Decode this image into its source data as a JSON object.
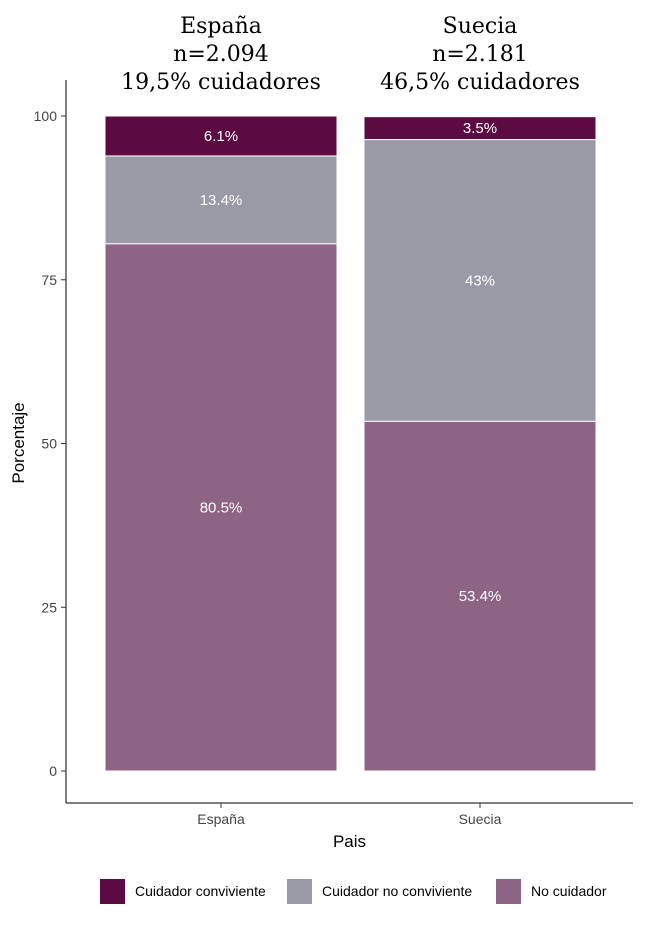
{
  "headers": [
    {
      "country": "España",
      "n": "n=2.094",
      "carers": "19,5% cuidadores"
    },
    {
      "country": "Suecia",
      "n": "n=2.181",
      "carers": "46,5% cuidadores"
    }
  ],
  "chart_data": {
    "type": "bar",
    "stacked": true,
    "categories": [
      "España",
      "Suecia"
    ],
    "series": [
      {
        "name": "No cuidador",
        "values": [
          80.5,
          53.4
        ],
        "labels": [
          "80.5%",
          "53.4%"
        ],
        "color": "#8e6485"
      },
      {
        "name": "Cuidador no conviviente",
        "values": [
          13.4,
          43
        ],
        "labels": [
          "13.4%",
          "43%"
        ],
        "color": "#9a99a6"
      },
      {
        "name": "Cuidador conviviente",
        "values": [
          6.1,
          3.5
        ],
        "labels": [
          "6.1%",
          "3.5%"
        ],
        "color": "#5c0a42"
      }
    ],
    "xlabel": "Pais",
    "ylabel": "Porcentaje",
    "ylim": [
      0,
      100
    ],
    "yticks": [
      "0",
      "25",
      "50",
      "75",
      "100"
    ],
    "grid": false,
    "legend_position": "bottom",
    "legend_order": [
      "Cuidador conviviente",
      "Cuidador no conviviente",
      "No cuidador"
    ]
  }
}
